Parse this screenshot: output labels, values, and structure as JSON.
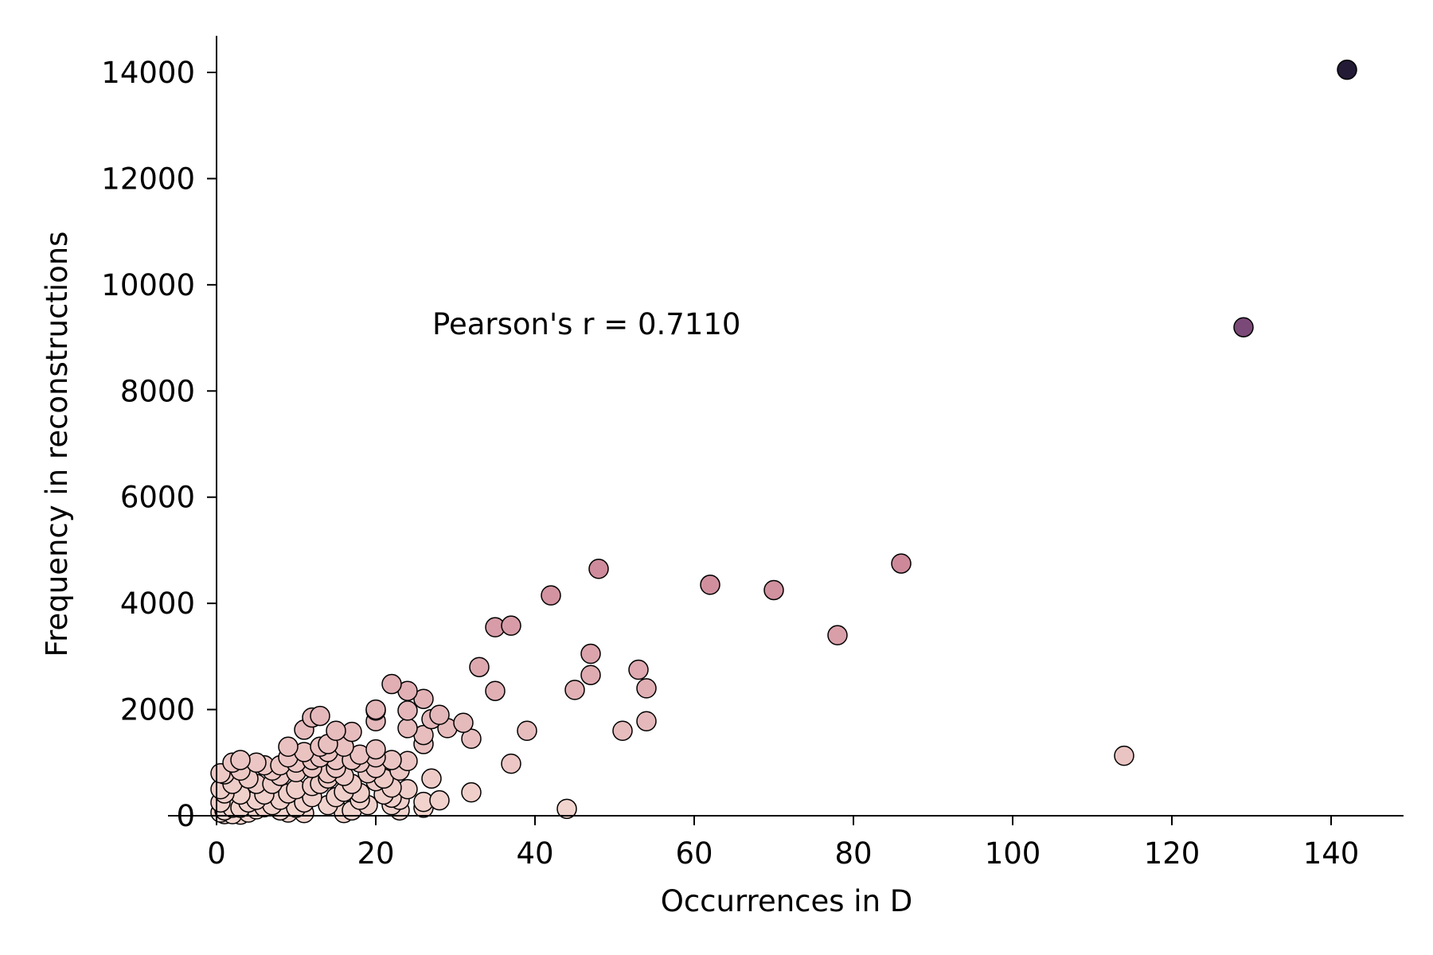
{
  "chart_data": {
    "type": "scatter",
    "title": "",
    "xlabel": "Occurrences in D",
    "ylabel": "Frequency in reconstructions",
    "xlim": [
      0,
      149
    ],
    "ylim": [
      -200,
      14800
    ],
    "x_ticks": [
      0,
      20,
      40,
      60,
      80,
      100,
      120,
      140
    ],
    "y_ticks": [
      0,
      2000,
      4000,
      6000,
      8000,
      10000,
      12000,
      14000
    ],
    "grid": false,
    "legend": "none",
    "color_scale": {
      "low": "#f3d6cf",
      "mid": "#cf8b9b",
      "high": "#7a4877",
      "max": "#231a36"
    },
    "annotation": "Pearson's r  = 0.7110",
    "annotation_position": [
      27,
      9150
    ],
    "points": [
      {
        "x": 142,
        "y": 14050
      },
      {
        "x": 129,
        "y": 9200
      },
      {
        "x": 86,
        "y": 4750
      },
      {
        "x": 48,
        "y": 4650
      },
      {
        "x": 62,
        "y": 4350
      },
      {
        "x": 70,
        "y": 4250
      },
      {
        "x": 42,
        "y": 4150
      },
      {
        "x": 35,
        "y": 3550
      },
      {
        "x": 37,
        "y": 3580
      },
      {
        "x": 78,
        "y": 3400
      },
      {
        "x": 47,
        "y": 3050
      },
      {
        "x": 53,
        "y": 2750
      },
      {
        "x": 33,
        "y": 2800
      },
      {
        "x": 47,
        "y": 2650
      },
      {
        "x": 22,
        "y": 2480
      },
      {
        "x": 24,
        "y": 2350
      },
      {
        "x": 35,
        "y": 2350
      },
      {
        "x": 45,
        "y": 2370
      },
      {
        "x": 54,
        "y": 2400
      },
      {
        "x": 26,
        "y": 2200
      },
      {
        "x": 20,
        "y": 2000
      },
      {
        "x": 20,
        "y": 1980
      },
      {
        "x": 24,
        "y": 1980
      },
      {
        "x": 28,
        "y": 1900
      },
      {
        "x": 27,
        "y": 1820
      },
      {
        "x": 31,
        "y": 1750
      },
      {
        "x": 20,
        "y": 1780
      },
      {
        "x": 54,
        "y": 1780
      },
      {
        "x": 29,
        "y": 1650
      },
      {
        "x": 24,
        "y": 1650
      },
      {
        "x": 39,
        "y": 1600
      },
      {
        "x": 51,
        "y": 1600
      },
      {
        "x": 26,
        "y": 1520
      },
      {
        "x": 32,
        "y": 1450
      },
      {
        "x": 26,
        "y": 1350
      },
      {
        "x": 13,
        "y": 1880
      },
      {
        "x": 12,
        "y": 1850
      },
      {
        "x": 15,
        "y": 1600
      },
      {
        "x": 17,
        "y": 1580
      },
      {
        "x": 11,
        "y": 1620
      },
      {
        "x": 9,
        "y": 1300
      },
      {
        "x": 14,
        "y": 1350
      },
      {
        "x": 18,
        "y": 1150
      },
      {
        "x": 114,
        "y": 1130
      },
      {
        "x": 37,
        "y": 980
      },
      {
        "x": 24,
        "y": 1030
      },
      {
        "x": 22,
        "y": 1050
      },
      {
        "x": 20,
        "y": 1100
      },
      {
        "x": 27,
        "y": 700
      },
      {
        "x": 32,
        "y": 440
      },
      {
        "x": 44,
        "y": 130
      },
      {
        "x": 26,
        "y": 260
      },
      {
        "x": 28,
        "y": 290
      },
      {
        "x": 26,
        "y": 150
      },
      {
        "x": 23,
        "y": 100
      },
      {
        "x": 22,
        "y": 530
      },
      {
        "x": 22,
        "y": 340
      },
      {
        "x": 20,
        "y": 650
      },
      {
        "x": 18,
        "y": 430
      },
      {
        "x": 17,
        "y": 100
      },
      {
        "x": 15,
        "y": 1050
      },
      {
        "x": 13,
        "y": 1100
      },
      {
        "x": 12,
        "y": 900
      },
      {
        "x": 12,
        "y": 560
      },
      {
        "x": 14,
        "y": 700
      },
      {
        "x": 16,
        "y": 450
      },
      {
        "x": 14,
        "y": 200
      },
      {
        "x": 11,
        "y": 250
      },
      {
        "x": 10,
        "y": 820
      },
      {
        "x": 9,
        "y": 420
      },
      {
        "x": 8,
        "y": 750
      },
      {
        "x": 8,
        "y": 300
      },
      {
        "x": 7,
        "y": 850
      },
      {
        "x": 6,
        "y": 950
      },
      {
        "x": 5,
        "y": 1000
      },
      {
        "x": 5,
        "y": 600
      },
      {
        "x": 4,
        "y": 250
      },
      {
        "x": 3,
        "y": 1050
      },
      {
        "x": 3,
        "y": 850
      },
      {
        "x": 3,
        "y": 400
      },
      {
        "x": 2,
        "y": 1000
      },
      {
        "x": 2,
        "y": 600
      },
      {
        "x": 2,
        "y": 150
      },
      {
        "x": 1,
        "y": 780
      },
      {
        "x": 1,
        "y": 420
      },
      {
        "x": 1,
        "y": 100
      },
      {
        "x": 1,
        "y": 30
      },
      {
        "x": 0.5,
        "y": 60
      },
      {
        "x": 0.5,
        "y": 250
      },
      {
        "x": 0.5,
        "y": 500
      },
      {
        "x": 0.5,
        "y": 800
      },
      {
        "x": 2,
        "y": 30
      },
      {
        "x": 3,
        "y": 20
      },
      {
        "x": 4,
        "y": 60
      },
      {
        "x": 5,
        "y": 120
      },
      {
        "x": 6,
        "y": 160
      },
      {
        "x": 7,
        "y": 200
      },
      {
        "x": 9,
        "y": 60
      },
      {
        "x": 10,
        "y": 150
      },
      {
        "x": 11,
        "y": 50
      },
      {
        "x": 12,
        "y": 350
      },
      {
        "x": 13,
        "y": 600
      },
      {
        "x": 15,
        "y": 900
      },
      {
        "x": 16,
        "y": 750
      },
      {
        "x": 17,
        "y": 600
      },
      {
        "x": 18,
        "y": 300
      },
      {
        "x": 19,
        "y": 200
      },
      {
        "x": 20,
        "y": 900
      },
      {
        "x": 21,
        "y": 700
      },
      {
        "x": 22,
        "y": 200
      },
      {
        "x": 23,
        "y": 850
      },
      {
        "x": 24,
        "y": 500
      },
      {
        "x": 6,
        "y": 400
      },
      {
        "x": 4,
        "y": 700
      },
      {
        "x": 8,
        "y": 950
      },
      {
        "x": 10,
        "y": 1000
      },
      {
        "x": 11,
        "y": 1200
      },
      {
        "x": 13,
        "y": 1300
      },
      {
        "x": 14,
        "y": 1200
      },
      {
        "x": 16,
        "y": 1300
      },
      {
        "x": 18,
        "y": 1000
      },
      {
        "x": 20,
        "y": 1250
      },
      {
        "x": 19,
        "y": 800
      },
      {
        "x": 7,
        "y": 600
      },
      {
        "x": 9,
        "y": 1100
      },
      {
        "x": 12,
        "y": 1050
      },
      {
        "x": 15,
        "y": 350
      },
      {
        "x": 17,
        "y": 1050
      },
      {
        "x": 3,
        "y": 150
      },
      {
        "x": 5,
        "y": 300
      },
      {
        "x": 10,
        "y": 500
      },
      {
        "x": 14,
        "y": 800
      },
      {
        "x": 21,
        "y": 400
      },
      {
        "x": 23,
        "y": 300
      },
      {
        "x": 16,
        "y": 50
      },
      {
        "x": 8,
        "y": 100
      }
    ]
  }
}
